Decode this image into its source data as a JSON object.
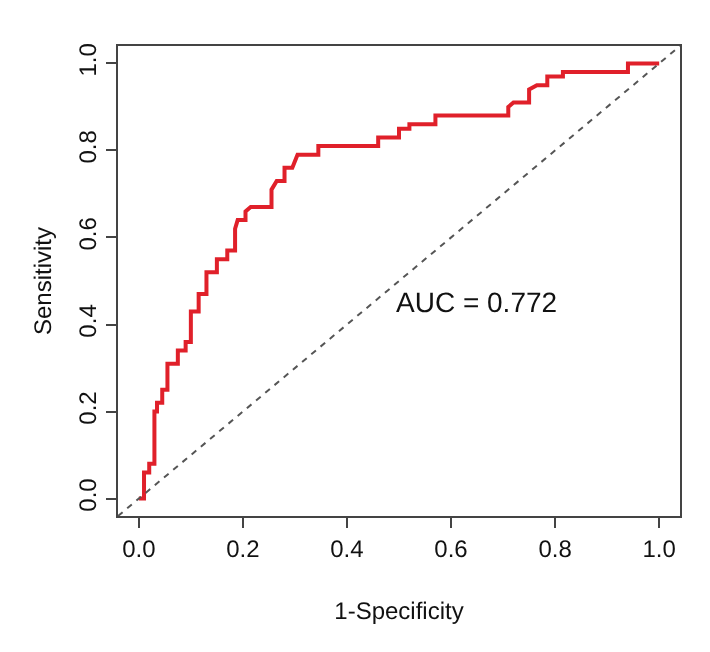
{
  "chart_data": {
    "type": "line",
    "xlabel": "1-Specificity",
    "ylabel": "Sensitivity",
    "annotations": [
      "AUC = 0.772"
    ],
    "series": [
      {
        "color": "#e0202a",
        "line_style": "solid",
        "x": [
          0,
          0.01,
          0.01,
          0.02,
          0.02,
          0.03,
          0.03,
          0.035,
          0.035,
          0.045,
          0.045,
          0.055,
          0.055,
          0.075,
          0.075,
          0.09,
          0.09,
          0.1,
          0.1,
          0.115,
          0.115,
          0.13,
          0.13,
          0.15,
          0.15,
          0.17,
          0.17,
          0.185,
          0.185,
          0.19,
          0.205,
          0.205,
          0.215,
          0.255,
          0.255,
          0.265,
          0.28,
          0.28,
          0.295,
          0.305,
          0.345,
          0.345,
          0.46,
          0.46,
          0.5,
          0.5,
          0.52,
          0.52,
          0.57,
          0.57,
          0.71,
          0.71,
          0.72,
          0.75,
          0.75,
          0.765,
          0.785,
          0.785,
          0.815,
          0.815,
          0.94,
          0.94,
          1.0
        ],
        "values": [
          0,
          0,
          0.06,
          0.06,
          0.08,
          0.08,
          0.2,
          0.2,
          0.22,
          0.22,
          0.25,
          0.25,
          0.31,
          0.31,
          0.34,
          0.34,
          0.36,
          0.36,
          0.43,
          0.43,
          0.47,
          0.47,
          0.52,
          0.52,
          0.55,
          0.55,
          0.57,
          0.57,
          0.62,
          0.64,
          0.64,
          0.66,
          0.67,
          0.67,
          0.71,
          0.73,
          0.73,
          0.76,
          0.76,
          0.79,
          0.79,
          0.81,
          0.81,
          0.83,
          0.83,
          0.85,
          0.85,
          0.86,
          0.86,
          0.88,
          0.88,
          0.9,
          0.91,
          0.91,
          0.94,
          0.95,
          0.95,
          0.97,
          0.97,
          0.98,
          0.98,
          1.0,
          1.0
        ]
      },
      {
        "type": "line",
        "color": "#555555",
        "line_style": "dotted",
        "x": [
          -0.04,
          1.04
        ],
        "values": [
          -0.04,
          1.04
        ]
      }
    ],
    "xlim": [
      -0.04,
      1.04
    ],
    "ylim": [
      -0.04,
      1.04
    ],
    "xticks": [
      {
        "value": 0,
        "label": "0.0"
      },
      {
        "value": 0.2,
        "label": "0.2"
      },
      {
        "value": 0.4,
        "label": "0.4"
      },
      {
        "value": 0.6,
        "label": "0.6"
      },
      {
        "value": 0.8,
        "label": "0.8"
      },
      {
        "value": 1,
        "label": "1.0"
      }
    ],
    "yticks": [
      {
        "value": 0,
        "label": "0.0"
      },
      {
        "value": 0.2,
        "label": "0.2"
      },
      {
        "value": 0.4,
        "label": "0.4"
      },
      {
        "value": 0.6,
        "label": "0.6"
      },
      {
        "value": 0.8,
        "label": "0.8"
      },
      {
        "value": 1,
        "label": "1.0"
      }
    ],
    "marker": "none"
  }
}
